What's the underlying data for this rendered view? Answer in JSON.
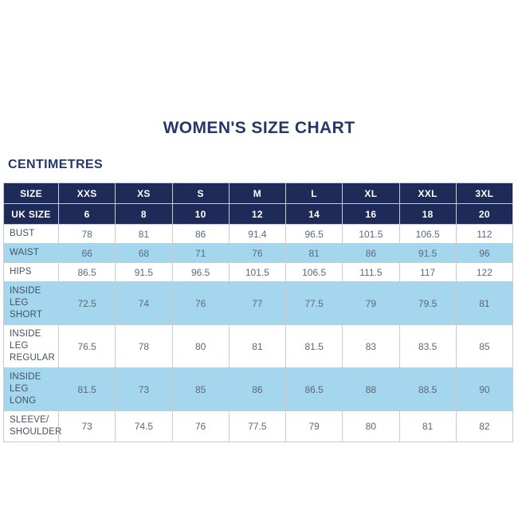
{
  "page": {
    "title": "WOMEN'S SIZE CHART",
    "units_heading": "CENTIMETRES"
  },
  "colors": {
    "navy_header": "#1e2b58",
    "title_text": "#24386b",
    "highlight_blue": "#a4d7ee",
    "border_gray": "#c6ccd2",
    "label_text": "#45525f",
    "value_text": "#5d6874",
    "page_background": "#ffffff"
  },
  "chart_data": {
    "type": "table",
    "title": "WOMEN'S SIZE CHART",
    "units": "CENTIMETRES",
    "header": {
      "label": "SIZE",
      "sizes": [
        "XXS",
        "XS",
        "S",
        "M",
        "L",
        "XL",
        "XXL",
        "3XL"
      ]
    },
    "uk_size_row": {
      "label": "UK SIZE",
      "values": [
        6,
        8,
        10,
        12,
        14,
        16,
        18,
        20
      ]
    },
    "rows": [
      {
        "measurement": "BUST",
        "values": [
          78,
          81,
          86,
          91.4,
          96.5,
          101.5,
          106.5,
          112
        ]
      },
      {
        "measurement": "WAIST",
        "values": [
          66,
          68,
          71,
          76,
          81,
          86,
          91.5,
          96
        ]
      },
      {
        "measurement": "HIPS",
        "values": [
          86.5,
          91.5,
          96.5,
          101.5,
          106.5,
          111.5,
          117,
          122
        ]
      },
      {
        "measurement": "INSIDE LEG SHORT",
        "values": [
          72.5,
          74,
          76,
          77,
          77.5,
          79,
          79.5,
          81
        ]
      },
      {
        "measurement": "INSIDE LEG REGULAR",
        "values": [
          76.5,
          78,
          80,
          81,
          81.5,
          83,
          83.5,
          85
        ]
      },
      {
        "measurement": "INSIDE LEG LONG",
        "values": [
          81.5,
          73,
          85,
          86,
          86.5,
          88,
          88.5,
          90
        ]
      },
      {
        "measurement": "SLEEVE/ SHOULDER",
        "values": [
          73,
          74.5,
          76,
          77.5,
          79,
          80,
          81,
          82
        ]
      }
    ],
    "layout_hints": {
      "striping": "alternating rows highlighted light blue starting with WAIST",
      "header_rows_background": "navy",
      "grid": true
    }
  }
}
